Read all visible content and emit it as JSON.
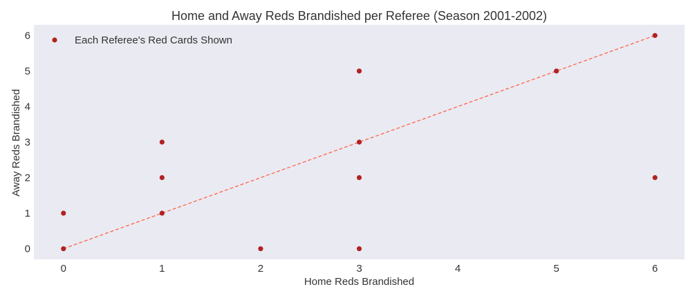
{
  "chart_data": {
    "type": "scatter",
    "title": "Home and Away Reds Brandished per Referee (Season 2001-2002)",
    "xlabel": "Home Reds Brandished",
    "ylabel": "Away Reds Brandished",
    "xlim": [
      -0.3,
      6.3
    ],
    "ylim": [
      -0.3,
      6.3
    ],
    "xticks": [
      0,
      1,
      2,
      3,
      4,
      5,
      6
    ],
    "yticks": [
      0,
      1,
      2,
      3,
      4,
      5,
      6
    ],
    "grid": false,
    "legend_position": "top-left",
    "series": [
      {
        "name": "Each Referee's Red Cards Shown",
        "color": "#b22222",
        "points": [
          {
            "x": 0,
            "y": 0
          },
          {
            "x": 0,
            "y": 1
          },
          {
            "x": 1,
            "y": 1
          },
          {
            "x": 1,
            "y": 2
          },
          {
            "x": 1,
            "y": 3
          },
          {
            "x": 2,
            "y": 0
          },
          {
            "x": 3,
            "y": 0
          },
          {
            "x": 3,
            "y": 2
          },
          {
            "x": 3,
            "y": 3
          },
          {
            "x": 3,
            "y": 5
          },
          {
            "x": 5,
            "y": 5
          },
          {
            "x": 6,
            "y": 2
          },
          {
            "x": 6,
            "y": 6
          }
        ]
      }
    ],
    "reference_line": {
      "from": [
        0,
        0
      ],
      "to": [
        6,
        6
      ],
      "color": "#ff6347",
      "style": "dashed"
    }
  }
}
